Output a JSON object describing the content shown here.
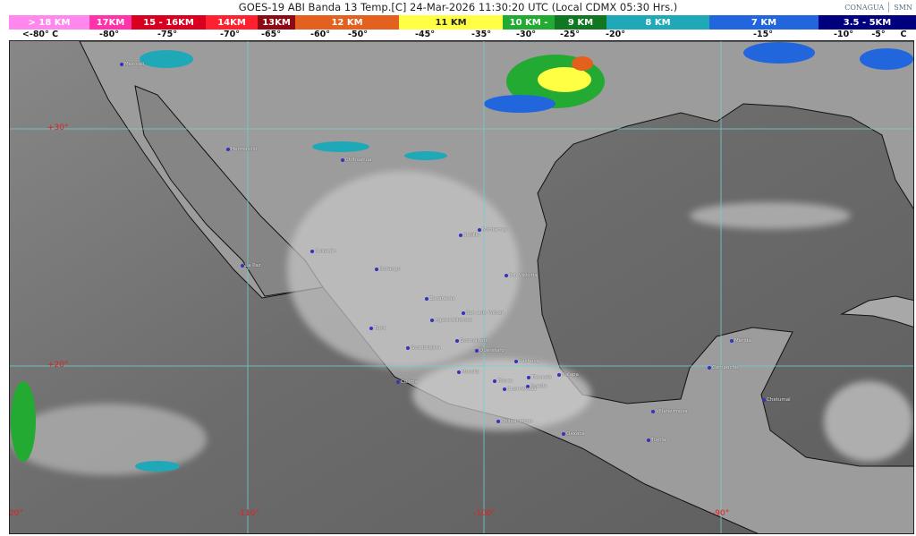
{
  "header": {
    "title": "GOES-19 ABI Banda 13 Temp.[C] 24-Mar-2026 11:30:20 UTC (Local CDMX  05:30 Hrs.)",
    "logos": [
      "CONAGUA",
      "SMN"
    ]
  },
  "legend": {
    "segments": [
      {
        "label": "> 18 KM",
        "color": "#ff88ee"
      },
      {
        "label": "17KM",
        "color": "#ff33aa"
      },
      {
        "label": "15 - 16KM",
        "color": "#d8001e"
      },
      {
        "label": "14KM",
        "color": "#ff2030"
      },
      {
        "label": "13KM",
        "color": "#8e0a12"
      },
      {
        "label": "12 KM",
        "color": "#e4601e"
      },
      {
        "label": "11 KM",
        "color": "#ffff44"
      },
      {
        "label": "10 KM -",
        "color": "#22aa33"
      },
      {
        "label": "9 KM",
        "color": "#117722"
      },
      {
        "label": "8 KM",
        "color": "#1fa8b8"
      },
      {
        "label": "7 KM",
        "color": "#2266dd"
      },
      {
        "label": "3.5 - 5KM",
        "color": "#00007e"
      }
    ],
    "temperatures": [
      "<-80° C",
      "-80°",
      "-75°",
      "-70°",
      "-65°",
      "-60°",
      "-50°",
      "-45°",
      "-35°",
      "-30°",
      "-25°",
      "-20°",
      "-15°",
      "-10°",
      "-5°",
      "C"
    ]
  },
  "map": {
    "latitude_labels": [
      "+30°",
      "+20°"
    ],
    "longitude_labels": [
      "-120°",
      "-110°",
      "-100°",
      "-90°"
    ],
    "cities": [
      "Mexicali",
      "Hermosillo",
      "Chihuahua",
      "La Paz",
      "Culiacán",
      "Durango",
      "Monterrey",
      "Saltillo",
      "Cd. Victoria",
      "Zacatecas",
      "San Luis Potosí",
      "Aguascalientes",
      "Tepic",
      "Guadalajara",
      "Guanajuato",
      "Querétaro",
      "Morelia",
      "Colima",
      "Pachuca",
      "Toluca",
      "Tlaxcala",
      "Puebla",
      "Xalapa",
      "Cuernavaca",
      "Chilpancingo",
      "Oaxaca",
      "Villahermosa",
      "Tuxtla",
      "Campeche",
      "Mérida",
      "Chetumal"
    ]
  }
}
